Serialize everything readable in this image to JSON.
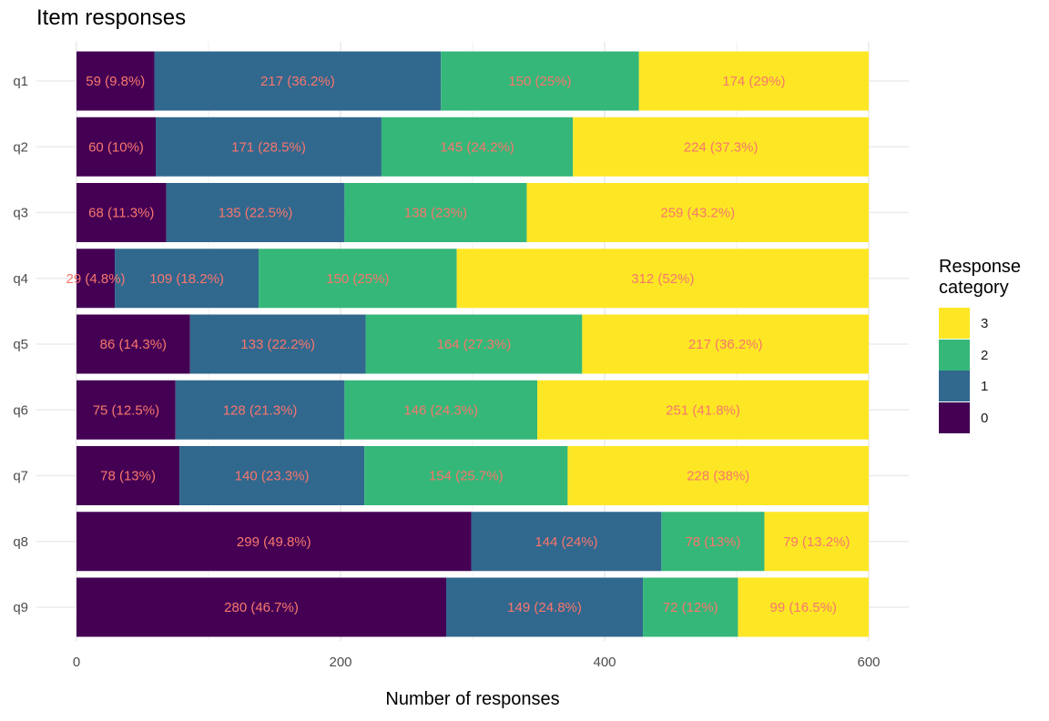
{
  "chart_data": {
    "type": "bar",
    "orientation": "horizontal",
    "stacked": true,
    "title": "Item responses",
    "xlabel": "Number of responses",
    "ylabel": "",
    "xlim": [
      0,
      600
    ],
    "x_ticks": [
      0,
      200,
      400,
      600
    ],
    "grid": true,
    "legend": {
      "title": "Response\ncategory",
      "position": "right",
      "order": [
        "3",
        "2",
        "1",
        "0"
      ]
    },
    "categories": [
      "q1",
      "q2",
      "q3",
      "q4",
      "q5",
      "q6",
      "q7",
      "q8",
      "q9"
    ],
    "series": [
      {
        "name": "0",
        "color": "#440154",
        "values": [
          59,
          60,
          68,
          29,
          86,
          75,
          78,
          299,
          280
        ],
        "labels": [
          "59 (9.8%)",
          "60 (10%)",
          "68 (11.3%)",
          "29 (4.8%)",
          "86 (14.3%)",
          "75 (12.5%)",
          "78 (13%)",
          "299 (49.8%)",
          "280 (46.7%)"
        ]
      },
      {
        "name": "1",
        "color": "#31688E",
        "values": [
          217,
          171,
          135,
          109,
          133,
          128,
          140,
          144,
          149
        ],
        "labels": [
          "217 (36.2%)",
          "171 (28.5%)",
          "135 (22.5%)",
          "109 (18.2%)",
          "133 (22.2%)",
          "128 (21.3%)",
          "140 (23.3%)",
          "144 (24%)",
          "149 (24.8%)"
        ]
      },
      {
        "name": "2",
        "color": "#35B779",
        "values": [
          150,
          145,
          138,
          150,
          164,
          146,
          154,
          78,
          72
        ],
        "labels": [
          "150 (25%)",
          "145 (24.2%)",
          "138 (23%)",
          "150 (25%)",
          "164 (27.3%)",
          "146 (24.3%)",
          "154 (25.7%)",
          "78 (13%)",
          "72 (12%)"
        ]
      },
      {
        "name": "3",
        "color": "#FDE725",
        "values": [
          174,
          224,
          259,
          312,
          217,
          251,
          228,
          79,
          99
        ],
        "labels": [
          "174 (29%)",
          "224 (37.3%)",
          "259 (43.2%)",
          "312 (52%)",
          "217 (36.2%)",
          "251 (41.8%)",
          "228 (38%)",
          "79 (13.2%)",
          "99 (16.5%)"
        ]
      }
    ],
    "label_color": "#F8766D"
  }
}
